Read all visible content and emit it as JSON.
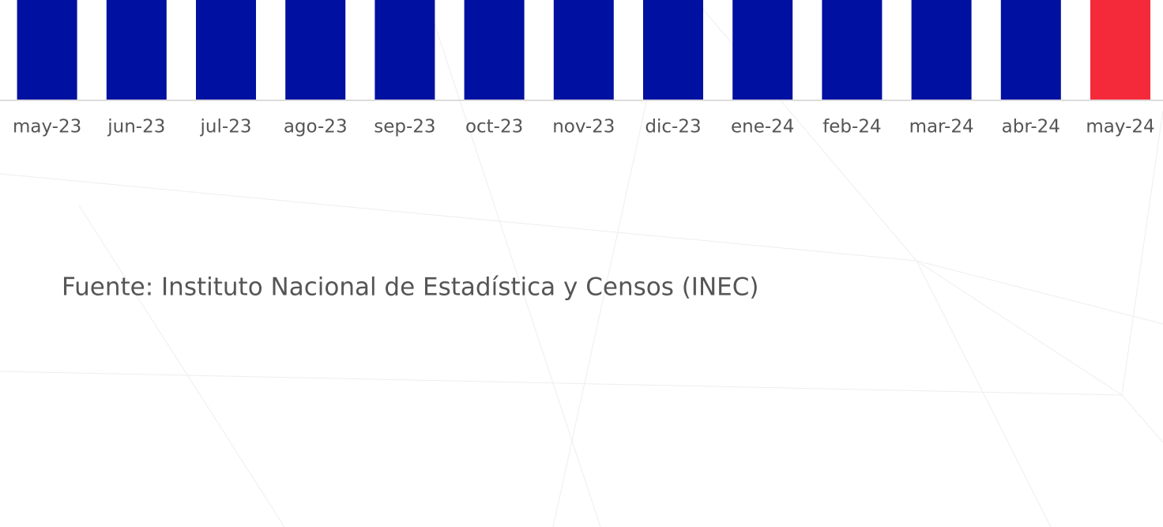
{
  "chart_data": {
    "type": "bar",
    "categories": [
      "may-23",
      "jun-23",
      "jul-23",
      "ago-23",
      "sep-23",
      "oct-23",
      "nov-23",
      "dic-23",
      "ene-24",
      "feb-24",
      "mar-24",
      "abr-24",
      "may-24"
    ],
    "colors": [
      "#0010a0",
      "#0010a0",
      "#0010a0",
      "#0010a0",
      "#0010a0",
      "#0010a0",
      "#0010a0",
      "#0010a0",
      "#0010a0",
      "#0010a0",
      "#0010a0",
      "#0010a0",
      "#f42a3a"
    ],
    "source": "Fuente: Instituto Nacional de Estadística y Censos (INEC)"
  }
}
